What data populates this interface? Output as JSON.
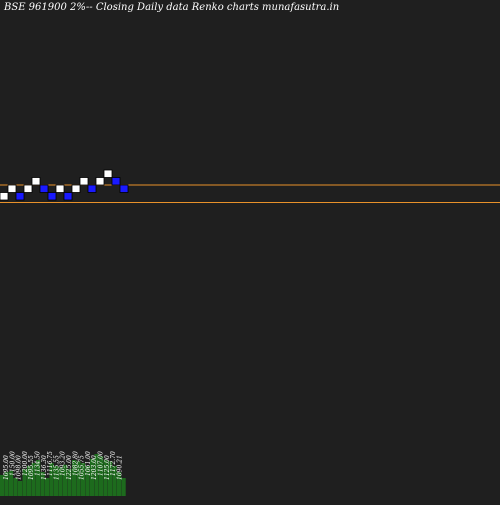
{
  "chart_data": {
    "type": "renko",
    "title": "BSE 961900  2%--  Closing Daily data Renko  charts munafasutra.in",
    "brick_percent": 2,
    "price_range": [
      1050,
      1210
    ],
    "reference_lines": [
      1195,
      1160
    ],
    "bricks": [
      {
        "dir": "up",
        "low": 1165,
        "high": 1180
      },
      {
        "dir": "up",
        "low": 1180,
        "high": 1195
      },
      {
        "dir": "down",
        "low": 1165,
        "high": 1180
      },
      {
        "dir": "up",
        "low": 1180,
        "high": 1195
      },
      {
        "dir": "up",
        "low": 1195,
        "high": 1210
      },
      {
        "dir": "down",
        "low": 1180,
        "high": 1195
      },
      {
        "dir": "down",
        "low": 1165,
        "high": 1180
      },
      {
        "dir": "up",
        "low": 1180,
        "high": 1195
      },
      {
        "dir": "down",
        "low": 1165,
        "high": 1180
      },
      {
        "dir": "up",
        "low": 1180,
        "high": 1195
      },
      {
        "dir": "up",
        "low": 1195,
        "high": 1210
      },
      {
        "dir": "down",
        "low": 1180,
        "high": 1195
      },
      {
        "dir": "up",
        "low": 1195,
        "high": 1210
      },
      {
        "dir": "up",
        "low": 1210,
        "high": 1225
      },
      {
        "dir": "down",
        "low": 1195,
        "high": 1210
      },
      {
        "dir": "down",
        "low": 1180,
        "high": 1195
      }
    ],
    "volume_labels": [
      "1095.00",
      "1150.00",
      "1098.00",
      "1200.00",
      "1095.55",
      "1134.50",
      "1136.30",
      "1116.75",
      "1135.55",
      "1093.20",
      "1225.00",
      "1082.80",
      "1055.75",
      "1061.00",
      "1203.00",
      "1107.00",
      "1125.00",
      "1172.70",
      "1090.21"
    ],
    "volumes": [
      0.35,
      0.4,
      0.42,
      0.3,
      0.25,
      0.45,
      0.5,
      0.55,
      0.6,
      0.4,
      0.3,
      0.55,
      0.5,
      0.48,
      0.52,
      0.45,
      0.6,
      0.58,
      0.55,
      0.5,
      0.62,
      0.7,
      0.66,
      0.6,
      0.58,
      0.5,
      0.4,
      0.3
    ],
    "colors": {
      "background": "#1f1f1f",
      "up_brick": "#ffffff",
      "down_brick": "#1a1aff",
      "brick_edge": "#000000",
      "reference_line": "#e8912a",
      "volume": "#1d6b1d",
      "text": "#ffffff"
    }
  }
}
